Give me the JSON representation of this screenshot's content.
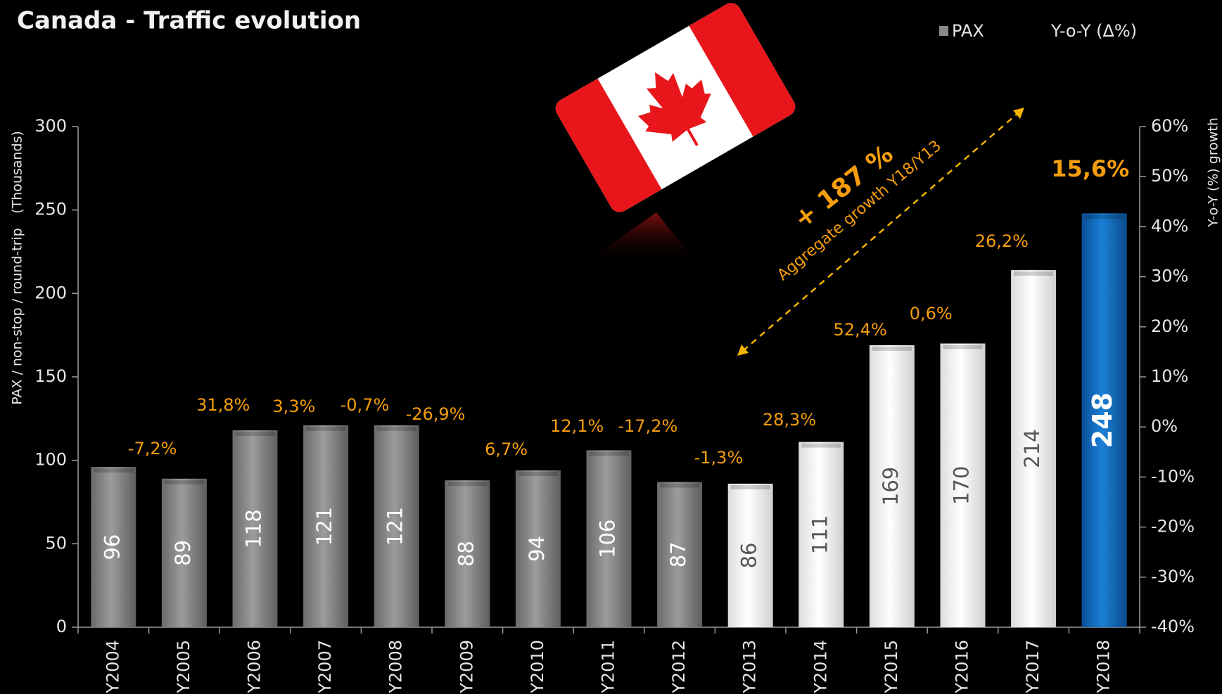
{
  "chart_data": {
    "type": "bar",
    "title": "Canada - Traffic evolution",
    "ylabel": "PAX / non-stop / round-trip",
    "ylabel_unit": "(Thousands)",
    "y2label": "Y-o-Y (%) growth",
    "categories": [
      "Y2004",
      "Y2005",
      "Y2006",
      "Y2007",
      "Y2008",
      "Y2009",
      "Y2010",
      "Y2011",
      "Y2012",
      "Y2013",
      "Y2014",
      "Y2015",
      "Y2016",
      "Y2017",
      "Y2018"
    ],
    "series": [
      {
        "name": "PAX",
        "colors": [
          "#8a8a8a",
          "#8a8a8a",
          "#8a8a8a",
          "#8a8a8a",
          "#8a8a8a",
          "#8a8a8a",
          "#8a8a8a",
          "#8a8a8a",
          "#8a8a8a",
          "#ffffff",
          "#ffffff",
          "#ffffff",
          "#ffffff",
          "#ffffff",
          "#0a6fc2"
        ],
        "values": [
          96,
          89,
          118,
          121,
          121,
          88,
          94,
          106,
          87,
          86,
          111,
          169,
          170,
          214,
          248
        ]
      },
      {
        "name": "Y-o-Y (Δ%)",
        "axis": "y2",
        "color": "#f59d0e",
        "values": [
          null,
          -7.2,
          31.8,
          3.3,
          -0.7,
          -26.9,
          6.7,
          12.1,
          -17.2,
          -1.3,
          28.3,
          52.4,
          0.6,
          26.2,
          15.6
        ],
        "value_labels": [
          null,
          "-7,2%",
          "31,8%",
          "3,3%",
          "-0,7%",
          "-26,9%",
          "6,7%",
          "12,1%",
          "-17,2%",
          "-1,3%",
          "28,3%",
          "52,4%",
          "0,6%",
          "26,2%",
          "15,6%"
        ]
      }
    ],
    "ylim": [
      0,
      300
    ],
    "yticks": [
      0,
      50,
      100,
      150,
      200,
      250,
      300
    ],
    "y2lim": [
      -40,
      60
    ],
    "y2ticks": [
      {
        "value": -40,
        "label": "-40%"
      },
      {
        "value": -30,
        "label": "-30%"
      },
      {
        "value": -20,
        "label": "-20%"
      },
      {
        "value": -10,
        "label": "-10%"
      },
      {
        "value": 0,
        "label": "0%"
      },
      {
        "value": 10,
        "label": "10%"
      },
      {
        "value": 20,
        "label": "20%"
      },
      {
        "value": 30,
        "label": "30%"
      },
      {
        "value": 40,
        "label": "40%"
      },
      {
        "value": 50,
        "label": "50%"
      },
      {
        "value": 60,
        "label": "60%"
      }
    ],
    "grid": false,
    "annotations": [
      "+ 187 %",
      "Aggregate growth Y18/Y13"
    ]
  }
}
